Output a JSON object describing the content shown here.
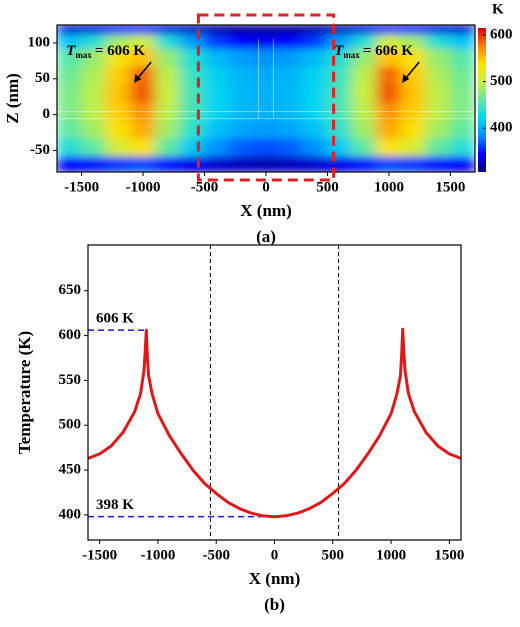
{
  "chart_data": [
    {
      "type": "heatmap",
      "label": "(a)",
      "xlabel": "X (nm)",
      "ylabel": "Z (nm)",
      "colorbar_label": "K",
      "xlim": [
        -1700,
        1700
      ],
      "ylim": [
        -80,
        125
      ],
      "xticks": [
        -1500,
        -1000,
        -500,
        0,
        500,
        1000,
        1500
      ],
      "yticks": [
        -50,
        0,
        50,
        100
      ],
      "clim": [
        306,
        615
      ],
      "cticks": [
        400,
        500,
        600
      ],
      "colormap": [
        "#00007f",
        "#0000ff",
        "#0090ff",
        "#00d8f0",
        "#60e8a0",
        "#c8f040",
        "#ffe000",
        "#ff8000",
        "#d40000"
      ],
      "highlight": {
        "xlim": [
          -550,
          550
        ],
        "color": "#e02020"
      },
      "annotations": [
        {
          "symbol": "T",
          "subscript": "max",
          "text": "= 606 K"
        },
        {
          "symbol": "T",
          "subscript": "max",
          "text": "= 606 K"
        }
      ],
      "x": [
        -1600,
        -1400,
        -1200,
        -1000,
        -800,
        -600,
        -400,
        -200,
        0,
        200,
        400,
        600,
        800,
        1000,
        1200,
        1400,
        1600
      ],
      "y": [
        -70,
        -45,
        -20,
        5,
        30,
        55,
        80,
        105,
        120
      ],
      "values": [
        [
          345,
          350,
          360,
          365,
          350,
          338,
          330,
          325,
          322,
          325,
          330,
          338,
          350,
          365,
          360,
          350,
          345
        ],
        [
          435,
          460,
          510,
          535,
          460,
          415,
          385,
          370,
          365,
          370,
          385,
          415,
          460,
          535,
          510,
          460,
          435
        ],
        [
          460,
          485,
          535,
          560,
          485,
          440,
          410,
          395,
          390,
          395,
          410,
          440,
          485,
          560,
          535,
          485,
          460
        ],
        [
          470,
          495,
          545,
          570,
          495,
          450,
          420,
          405,
          400,
          405,
          420,
          450,
          495,
          570,
          545,
          495,
          470
        ],
        [
          470,
          495,
          550,
          590,
          500,
          450,
          420,
          405,
          400,
          405,
          420,
          450,
          500,
          590,
          550,
          495,
          470
        ],
        [
          465,
          490,
          545,
          585,
          495,
          445,
          418,
          403,
          398,
          403,
          418,
          445,
          495,
          585,
          545,
          490,
          465
        ],
        [
          455,
          480,
          530,
          550,
          480,
          435,
          405,
          390,
          385,
          390,
          405,
          435,
          480,
          550,
          530,
          480,
          455
        ],
        [
          410,
          435,
          485,
          505,
          435,
          390,
          360,
          345,
          340,
          345,
          360,
          390,
          435,
          505,
          485,
          435,
          410
        ],
        [
          330,
          335,
          345,
          350,
          335,
          325,
          318,
          315,
          315,
          315,
          318,
          325,
          335,
          350,
          345,
          335,
          330
        ]
      ]
    },
    {
      "type": "line",
      "label": "(b)",
      "xlabel": "X (nm)",
      "ylabel": "Temperature (K)",
      "color": "#e01818",
      "xlim": [
        -1600,
        1600
      ],
      "ylim": [
        372,
        701
      ],
      "xticks": [
        -1500,
        -1000,
        -500,
        0,
        500,
        1000,
        1500
      ],
      "yticks": [
        400,
        450,
        500,
        550,
        600,
        650
      ],
      "vlines": [
        -550,
        550
      ],
      "hlines": [
        {
          "value": 606,
          "label": "606 K",
          "xmax": -1100,
          "color": "#1a1ad8"
        },
        {
          "value": 398,
          "label": "398 K",
          "xmax": 0,
          "color": "#1a1ad8"
        }
      ],
      "x": [
        -1600,
        -1500,
        -1400,
        -1300,
        -1200,
        -1150,
        -1120,
        -1110,
        -1100,
        -1090,
        -1080,
        -1050,
        -1000,
        -900,
        -800,
        -700,
        -600,
        -500,
        -400,
        -300,
        -200,
        -100,
        0,
        100,
        200,
        300,
        400,
        500,
        600,
        700,
        800,
        900,
        1000,
        1050,
        1080,
        1090,
        1100,
        1110,
        1120,
        1150,
        1200,
        1300,
        1400,
        1500,
        1600
      ],
      "values": [
        463,
        468,
        477,
        492,
        515,
        535,
        560,
        580,
        606,
        575,
        555,
        535,
        513,
        488,
        468,
        450,
        435,
        424,
        414,
        407,
        402,
        399,
        398,
        399,
        402,
        407,
        414,
        424,
        435,
        450,
        468,
        488,
        513,
        535,
        555,
        577,
        607,
        580,
        560,
        535,
        515,
        492,
        477,
        468,
        463
      ]
    }
  ]
}
